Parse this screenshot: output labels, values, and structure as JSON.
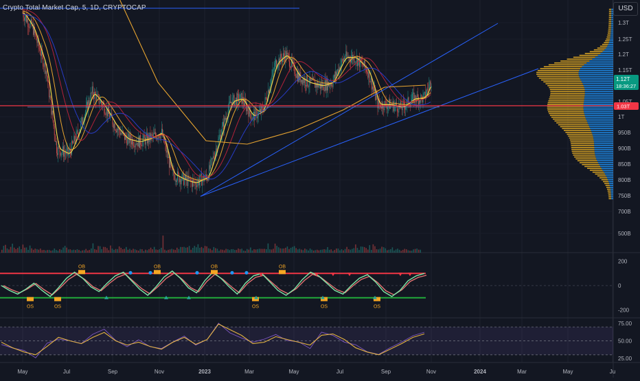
{
  "header": {
    "title": "Crypto Total Market Cap, 5, 1D, CRYPTOCAP",
    "currency": "USD"
  },
  "colors": {
    "background": "#131722",
    "up": "#26a69a",
    "down": "#ef5350",
    "trendline": "#2962ff",
    "support_line": "#f23645",
    "ma_yellow": "#f0d24a",
    "ma_orange": "#e8a530",
    "ma_red": "#b2223a",
    "ma_blue": "#283cc8",
    "volume_profile_gold": "#d4a023",
    "volume_profile_blue": "#1e88e5",
    "price_label_bg": "#089981",
    "rsi": "#7e57c2"
  },
  "price_panel": {
    "price_label": "1.12T",
    "countdown": "18:36:27",
    "support_level_label": "1.03T"
  },
  "oscillator_panel": {
    "ob_label": "OB",
    "os_label": "OS"
  },
  "rsi_panel": {},
  "chart_data": [
    {
      "type": "line",
      "panel": "price",
      "title": "Crypto Total Market Cap, 5, 1D, CRYPTOCAP",
      "xlabel": "",
      "ylabel": "",
      "x_ticks": [
        "May",
        "Jul",
        "Sep",
        "Nov",
        "2023",
        "Mar",
        "May",
        "Jul",
        "Sep",
        "Nov",
        "2024",
        "Mar",
        "May",
        "Ju"
      ],
      "y_ticks": [
        "1.3T",
        "1.25T",
        "1.2T",
        "1.15T",
        "1.05T",
        "1T",
        "950B",
        "900B",
        "850B",
        "800B",
        "750B",
        "700B",
        "500B"
      ],
      "ylim": [
        650,
        1350
      ],
      "series": [
        {
          "x": [
            "2022-05-01",
            "2022-05-15",
            "2022-06-01",
            "2022-06-15",
            "2022-07-01",
            "2022-07-15",
            "2022-08-01",
            "2022-08-15",
            "2022-09-01",
            "2022-09-15",
            "2022-10-01",
            "2022-10-15",
            "2022-11-01",
            "2022-11-15",
            "2022-12-01",
            "2022-12-15",
            "2023-01-01",
            "2023-01-15",
            "2023-02-01",
            "2023-02-15",
            "2023-03-01",
            "2023-03-15",
            "2023-04-01",
            "2023-04-15",
            "2023-05-01",
            "2023-05-15",
            "2023-06-01",
            "2023-06-15",
            "2023-07-01",
            "2023-07-15",
            "2023-08-01",
            "2023-08-15",
            "2023-09-01",
            "2023-09-15",
            "2023-10-01",
            "2023-10-15",
            "2023-10-25"
          ],
          "values": [
            1330,
            1280,
            1150,
            900,
            880,
            960,
            1080,
            1040,
            970,
            930,
            920,
            930,
            950,
            820,
            800,
            790,
            810,
            920,
            1050,
            1060,
            1000,
            1020,
            1170,
            1200,
            1130,
            1110,
            1100,
            1110,
            1190,
            1190,
            1150,
            1040,
            1040,
            1030,
            1060,
            1060,
            1120
          ]
        }
      ],
      "annotations": [
        "1.12T",
        "18:36:27"
      ]
    },
    {
      "type": "bar",
      "panel": "volume",
      "note_values": "relative heights",
      "values": [
        3,
        4,
        5,
        4,
        3,
        4,
        6,
        4,
        3,
        3,
        4,
        3,
        5,
        4,
        3,
        3,
        4,
        4,
        3,
        3,
        2,
        3,
        3,
        3,
        2,
        2,
        3,
        2,
        2,
        2,
        3,
        2,
        2,
        2,
        2,
        3,
        4,
        3,
        2,
        2,
        2,
        3,
        3,
        2,
        2,
        2,
        2,
        3,
        2,
        2
      ]
    },
    {
      "type": "line",
      "panel": "oscillator",
      "y_ticks": [
        "200",
        "0",
        "-200"
      ],
      "ylim": [
        -260,
        260
      ],
      "levels": [
        100,
        -100
      ],
      "values": [
        0,
        -40,
        -70,
        -30,
        20,
        -40,
        -90,
        -20,
        60,
        110,
        60,
        -10,
        -50,
        20,
        80,
        110,
        40,
        -30,
        -80,
        -10,
        70,
        120,
        60,
        -20,
        -60,
        40,
        110,
        60,
        -10,
        -70,
        20,
        80,
        100,
        30,
        -40,
        -80,
        -30,
        50,
        110,
        80,
        20,
        -40,
        -70,
        0,
        60,
        90,
        30,
        -50,
        -90,
        -40,
        40,
        80,
        100
      ]
    },
    {
      "type": "line",
      "panel": "rsi",
      "y_ticks": [
        "75.00",
        "50.00",
        "25.00"
      ],
      "ylim": [
        20,
        82
      ],
      "levels": [
        70,
        50,
        30
      ],
      "values": [
        48,
        40,
        34,
        30,
        42,
        55,
        50,
        46,
        55,
        62,
        50,
        44,
        48,
        42,
        38,
        48,
        55,
        45,
        52,
        74,
        66,
        58,
        46,
        48,
        56,
        52,
        48,
        44,
        58,
        60,
        52,
        40,
        34,
        30,
        38,
        46,
        55,
        60
      ]
    }
  ]
}
